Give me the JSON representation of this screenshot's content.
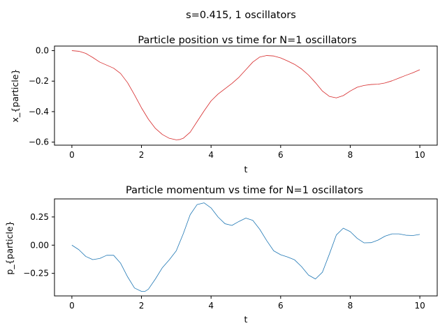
{
  "suptitle": "s=0.415, 1 oscillators",
  "chart_data": [
    {
      "type": "line",
      "title": "Particle position vs time for N=1 oscillators",
      "xlabel": "t",
      "ylabel": "x_{particle}",
      "xlim": [
        -0.5,
        10.5
      ],
      "ylim": [
        -0.62,
        0.03
      ],
      "xticks": [
        0,
        2,
        4,
        6,
        8,
        10
      ],
      "xtick_labels": [
        "0",
        "2",
        "4",
        "6",
        "8",
        "10"
      ],
      "yticks": [
        0.0,
        -0.2,
        -0.4,
        -0.6
      ],
      "ytick_labels": [
        "0.0",
        "−0.2",
        "−0.4",
        "−0.6"
      ],
      "grid": false,
      "color": "#d62728",
      "series": [
        {
          "x": [
            0,
            0.2,
            0.4,
            0.6,
            0.8,
            1.0,
            1.2,
            1.4,
            1.6,
            1.8,
            2.0,
            2.2,
            2.4,
            2.6,
            2.8,
            3.0,
            3.1,
            3.2,
            3.4,
            3.6,
            3.8,
            4.0,
            4.2,
            4.4,
            4.6,
            4.8,
            5.0,
            5.2,
            5.4,
            5.6,
            5.8,
            6.0,
            6.2,
            6.4,
            6.6,
            6.8,
            7.0,
            7.2,
            7.4,
            7.6,
            7.8,
            8.0,
            8.2,
            8.4,
            8.6,
            8.8,
            9.0,
            9.2,
            9.4,
            9.6,
            9.8,
            10.0
          ],
          "y": [
            0.0,
            -0.004,
            -0.018,
            -0.045,
            -0.075,
            -0.095,
            -0.115,
            -0.15,
            -0.21,
            -0.29,
            -0.375,
            -0.45,
            -0.51,
            -0.55,
            -0.575,
            -0.585,
            -0.583,
            -0.575,
            -0.535,
            -0.465,
            -0.395,
            -0.33,
            -0.285,
            -0.25,
            -0.215,
            -0.175,
            -0.125,
            -0.075,
            -0.042,
            -0.032,
            -0.035,
            -0.048,
            -0.068,
            -0.09,
            -0.12,
            -0.16,
            -0.21,
            -0.265,
            -0.3,
            -0.31,
            -0.295,
            -0.265,
            -0.24,
            -0.228,
            -0.222,
            -0.22,
            -0.212,
            -0.198,
            -0.18,
            -0.162,
            -0.145,
            -0.125
          ]
        }
      ]
    },
    {
      "type": "line",
      "title": "Particle momentum vs time for N=1 oscillators",
      "xlabel": "t",
      "ylabel": "p_{particle}",
      "xlim": [
        -0.5,
        10.5
      ],
      "ylim": [
        -0.45,
        0.41
      ],
      "xticks": [
        0,
        2,
        4,
        6,
        8,
        10
      ],
      "xtick_labels": [
        "0",
        "2",
        "4",
        "6",
        "8",
        "10"
      ],
      "yticks": [
        0.25,
        0.0,
        -0.25
      ],
      "ytick_labels": [
        "0.25",
        "0.00",
        "−0.25"
      ],
      "grid": false,
      "color": "#1f77b4",
      "series": [
        {
          "x": [
            0,
            0.2,
            0.4,
            0.6,
            0.8,
            1.0,
            1.2,
            1.4,
            1.6,
            1.8,
            2.0,
            2.1,
            2.2,
            2.4,
            2.6,
            2.8,
            3.0,
            3.2,
            3.4,
            3.6,
            3.8,
            4.0,
            4.2,
            4.4,
            4.6,
            4.8,
            5.0,
            5.2,
            5.4,
            5.6,
            5.8,
            6.0,
            6.2,
            6.4,
            6.6,
            6.8,
            7.0,
            7.2,
            7.4,
            7.6,
            7.8,
            8.0,
            8.2,
            8.4,
            8.6,
            8.8,
            9.0,
            9.2,
            9.4,
            9.6,
            9.8,
            10.0
          ],
          "y": [
            0.0,
            -0.04,
            -0.1,
            -0.128,
            -0.118,
            -0.09,
            -0.09,
            -0.16,
            -0.28,
            -0.38,
            -0.41,
            -0.41,
            -0.39,
            -0.3,
            -0.2,
            -0.13,
            -0.05,
            0.1,
            0.27,
            0.36,
            0.375,
            0.33,
            0.25,
            0.19,
            0.175,
            0.21,
            0.24,
            0.22,
            0.14,
            0.04,
            -0.05,
            -0.085,
            -0.105,
            -0.13,
            -0.19,
            -0.265,
            -0.3,
            -0.24,
            -0.08,
            0.09,
            0.15,
            0.12,
            0.06,
            0.02,
            0.022,
            0.045,
            0.08,
            0.1,
            0.1,
            0.088,
            0.085,
            0.095
          ]
        }
      ]
    }
  ]
}
